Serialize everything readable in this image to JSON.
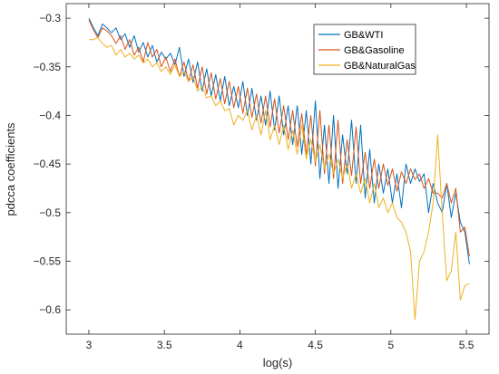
{
  "chart_data": {
    "type": "line",
    "title": "",
    "xlabel": "log(s)",
    "ylabel": "pdcca coefficients",
    "xlim": [
      2.85,
      5.65
    ],
    "ylim": [
      -0.625,
      -0.285
    ],
    "xticks": [
      3,
      3.5,
      4,
      4.5,
      5,
      5.5
    ],
    "xtick_labels": [
      "3",
      "3.5",
      "4",
      "4.5",
      "5",
      "5.5"
    ],
    "yticks": [
      -0.3,
      -0.35,
      -0.4,
      -0.45,
      -0.5,
      -0.55,
      -0.6
    ],
    "ytick_labels": [
      "−0.3",
      "−0.35",
      "−0.4",
      "−0.45",
      "−0.5",
      "−0.55",
      "−0.6"
    ],
    "grid": false,
    "legend_position": "top-right",
    "series": [
      {
        "name": "GB&WTI",
        "color": "#0072BD",
        "x": [
          3.0,
          3.03,
          3.06,
          3.09,
          3.12,
          3.15,
          3.18,
          3.21,
          3.24,
          3.27,
          3.3,
          3.33,
          3.36,
          3.39,
          3.42,
          3.45,
          3.48,
          3.51,
          3.54,
          3.57,
          3.6,
          3.63,
          3.66,
          3.69,
          3.72,
          3.75,
          3.78,
          3.81,
          3.84,
          3.87,
          3.9,
          3.93,
          3.96,
          3.99,
          4.02,
          4.05,
          4.08,
          4.11,
          4.14,
          4.17,
          4.2,
          4.23,
          4.26,
          4.29,
          4.32,
          4.35,
          4.38,
          4.41,
          4.44,
          4.47,
          4.5,
          4.53,
          4.56,
          4.59,
          4.62,
          4.65,
          4.68,
          4.71,
          4.74,
          4.77,
          4.8,
          4.83,
          4.86,
          4.89,
          4.92,
          4.95,
          4.98,
          5.01,
          5.04,
          5.07,
          5.1,
          5.13,
          5.16,
          5.19,
          5.22,
          5.25,
          5.28,
          5.31,
          5.34,
          5.37,
          5.4,
          5.43,
          5.46,
          5.49,
          5.52
        ],
        "y": [
          -0.3,
          -0.31,
          -0.318,
          -0.306,
          -0.31,
          -0.315,
          -0.31,
          -0.322,
          -0.316,
          -0.33,
          -0.318,
          -0.335,
          -0.325,
          -0.34,
          -0.328,
          -0.345,
          -0.335,
          -0.342,
          -0.336,
          -0.348,
          -0.33,
          -0.36,
          -0.342,
          -0.366,
          -0.345,
          -0.375,
          -0.352,
          -0.38,
          -0.358,
          -0.385,
          -0.36,
          -0.39,
          -0.37,
          -0.392,
          -0.365,
          -0.4,
          -0.372,
          -0.405,
          -0.38,
          -0.41,
          -0.375,
          -0.415,
          -0.38,
          -0.42,
          -0.39,
          -0.43,
          -0.39,
          -0.44,
          -0.395,
          -0.45,
          -0.385,
          -0.465,
          -0.41,
          -0.47,
          -0.4,
          -0.475,
          -0.42,
          -0.46,
          -0.405,
          -0.47,
          -0.41,
          -0.485,
          -0.435,
          -0.49,
          -0.45,
          -0.48,
          -0.455,
          -0.49,
          -0.46,
          -0.495,
          -0.45,
          -0.47,
          -0.455,
          -0.468,
          -0.46,
          -0.5,
          -0.47,
          -0.49,
          -0.5,
          -0.47,
          -0.505,
          -0.48,
          -0.51,
          -0.52,
          -0.553
        ]
      },
      {
        "name": "GB&Gasoline",
        "color": "#D95319",
        "x": [
          3.0,
          3.03,
          3.06,
          3.09,
          3.12,
          3.15,
          3.18,
          3.21,
          3.24,
          3.27,
          3.3,
          3.33,
          3.36,
          3.39,
          3.42,
          3.45,
          3.48,
          3.51,
          3.54,
          3.57,
          3.6,
          3.63,
          3.66,
          3.69,
          3.72,
          3.75,
          3.78,
          3.81,
          3.84,
          3.87,
          3.9,
          3.93,
          3.96,
          3.99,
          4.02,
          4.05,
          4.08,
          4.11,
          4.14,
          4.17,
          4.2,
          4.23,
          4.26,
          4.29,
          4.32,
          4.35,
          4.38,
          4.41,
          4.44,
          4.47,
          4.5,
          4.53,
          4.56,
          4.59,
          4.62,
          4.65,
          4.68,
          4.71,
          4.74,
          4.77,
          4.8,
          4.83,
          4.86,
          4.89,
          4.92,
          4.95,
          4.98,
          5.01,
          5.04,
          5.07,
          5.1,
          5.13,
          5.16,
          5.19,
          5.22,
          5.25,
          5.28,
          5.31,
          5.34,
          5.37,
          5.4,
          5.43,
          5.46,
          5.49,
          5.52
        ],
        "y": [
          -0.302,
          -0.312,
          -0.32,
          -0.31,
          -0.313,
          -0.318,
          -0.326,
          -0.318,
          -0.332,
          -0.322,
          -0.338,
          -0.33,
          -0.345,
          -0.325,
          -0.34,
          -0.332,
          -0.35,
          -0.34,
          -0.355,
          -0.342,
          -0.36,
          -0.345,
          -0.365,
          -0.348,
          -0.372,
          -0.35,
          -0.378,
          -0.356,
          -0.383,
          -0.362,
          -0.388,
          -0.365,
          -0.392,
          -0.37,
          -0.398,
          -0.372,
          -0.402,
          -0.378,
          -0.408,
          -0.38,
          -0.412,
          -0.383,
          -0.418,
          -0.39,
          -0.425,
          -0.395,
          -0.432,
          -0.398,
          -0.44,
          -0.4,
          -0.452,
          -0.395,
          -0.46,
          -0.41,
          -0.465,
          -0.405,
          -0.47,
          -0.425,
          -0.462,
          -0.412,
          -0.47,
          -0.438,
          -0.475,
          -0.445,
          -0.475,
          -0.45,
          -0.472,
          -0.455,
          -0.478,
          -0.458,
          -0.47,
          -0.455,
          -0.466,
          -0.46,
          -0.475,
          -0.465,
          -0.48,
          -0.48,
          -0.485,
          -0.47,
          -0.49,
          -0.475,
          -0.52,
          -0.515,
          -0.545
        ]
      },
      {
        "name": "GB&NaturalGas",
        "color": "#EDB120",
        "x": [
          3.0,
          3.03,
          3.06,
          3.09,
          3.12,
          3.15,
          3.18,
          3.21,
          3.24,
          3.27,
          3.3,
          3.33,
          3.36,
          3.39,
          3.42,
          3.45,
          3.48,
          3.51,
          3.54,
          3.57,
          3.6,
          3.63,
          3.66,
          3.69,
          3.72,
          3.75,
          3.78,
          3.81,
          3.84,
          3.87,
          3.9,
          3.93,
          3.96,
          3.99,
          4.02,
          4.05,
          4.08,
          4.11,
          4.14,
          4.17,
          4.2,
          4.23,
          4.26,
          4.29,
          4.32,
          4.35,
          4.38,
          4.41,
          4.44,
          4.47,
          4.5,
          4.53,
          4.56,
          4.59,
          4.62,
          4.65,
          4.68,
          4.71,
          4.74,
          4.77,
          4.8,
          4.83,
          4.86,
          4.89,
          4.92,
          4.95,
          4.98,
          5.01,
          5.04,
          5.07,
          5.1,
          5.13,
          5.16,
          5.19,
          5.22,
          5.25,
          5.28,
          5.31,
          5.34,
          5.37,
          5.4,
          5.43,
          5.46,
          5.49,
          5.52
        ],
        "y": [
          -0.322,
          -0.322,
          -0.32,
          -0.326,
          -0.33,
          -0.328,
          -0.338,
          -0.332,
          -0.34,
          -0.336,
          -0.342,
          -0.338,
          -0.346,
          -0.342,
          -0.35,
          -0.346,
          -0.355,
          -0.35,
          -0.358,
          -0.348,
          -0.36,
          -0.355,
          -0.365,
          -0.36,
          -0.375,
          -0.37,
          -0.382,
          -0.38,
          -0.39,
          -0.385,
          -0.395,
          -0.393,
          -0.41,
          -0.4,
          -0.405,
          -0.395,
          -0.415,
          -0.4,
          -0.42,
          -0.395,
          -0.425,
          -0.41,
          -0.43,
          -0.41,
          -0.435,
          -0.415,
          -0.44,
          -0.41,
          -0.445,
          -0.425,
          -0.448,
          -0.43,
          -0.455,
          -0.44,
          -0.46,
          -0.445,
          -0.465,
          -0.45,
          -0.475,
          -0.46,
          -0.48,
          -0.465,
          -0.49,
          -0.47,
          -0.495,
          -0.485,
          -0.5,
          -0.49,
          -0.505,
          -0.51,
          -0.52,
          -0.54,
          -0.61,
          -0.55,
          -0.54,
          -0.52,
          -0.49,
          -0.42,
          -0.5,
          -0.57,
          -0.56,
          -0.52,
          -0.59,
          -0.575,
          -0.573
        ]
      }
    ]
  }
}
